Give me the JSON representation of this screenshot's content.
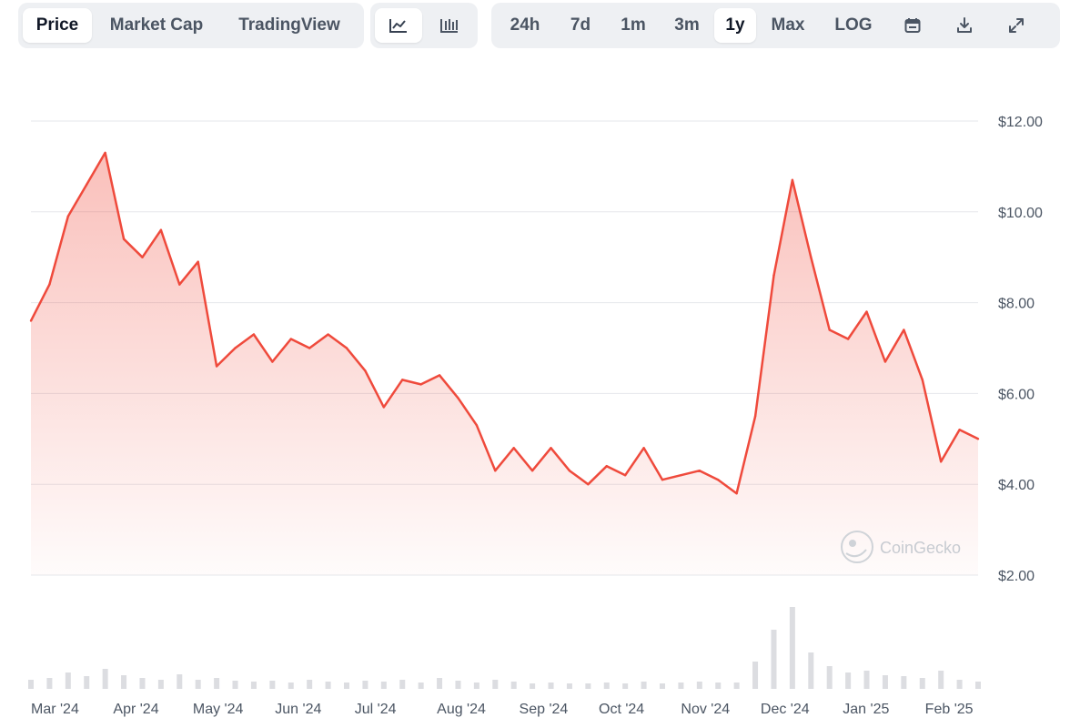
{
  "toolbar": {
    "tabs": [
      "Price",
      "Market Cap",
      "TradingView"
    ],
    "active_tab": "Price",
    "chart_styles": [
      "line-chart-icon",
      "candlestick-icon"
    ],
    "active_style": "line-chart-icon",
    "ranges": [
      "24h",
      "7d",
      "1m",
      "3m",
      "1y",
      "Max",
      "LOG"
    ],
    "active_range": "1y",
    "tools": [
      "calendar-icon",
      "download-icon",
      "expand-icon"
    ]
  },
  "watermark": "CoinGecko",
  "colors": {
    "line": "#ef4a3c",
    "grid": "#e5e7eb",
    "axis_text": "#4b5563",
    "volume": "#dcdde1"
  },
  "chart_data": {
    "type": "area",
    "x": [
      "2024-03-01",
      "2024-03-08",
      "2024-03-15",
      "2024-03-22",
      "2024-03-29",
      "2024-04-05",
      "2024-04-12",
      "2024-04-19",
      "2024-04-26",
      "2024-05-03",
      "2024-05-10",
      "2024-05-17",
      "2024-05-24",
      "2024-05-31",
      "2024-06-07",
      "2024-06-14",
      "2024-06-21",
      "2024-06-28",
      "2024-07-05",
      "2024-07-12",
      "2024-07-19",
      "2024-07-26",
      "2024-08-02",
      "2024-08-09",
      "2024-08-16",
      "2024-08-23",
      "2024-08-30",
      "2024-09-06",
      "2024-09-13",
      "2024-09-20",
      "2024-09-27",
      "2024-10-04",
      "2024-10-11",
      "2024-10-18",
      "2024-10-25",
      "2024-11-01",
      "2024-11-08",
      "2024-11-15",
      "2024-11-22",
      "2024-11-29",
      "2024-12-06",
      "2024-12-13",
      "2024-12-20",
      "2024-12-27",
      "2025-01-03",
      "2025-01-10",
      "2025-01-17",
      "2025-01-24",
      "2025-01-31",
      "2025-02-07",
      "2025-02-14",
      "2025-02-21"
    ],
    "series": [
      {
        "values": [
          7.6,
          8.4,
          9.9,
          10.6,
          11.3,
          9.4,
          9.0,
          9.6,
          8.4,
          8.9,
          6.6,
          7.0,
          7.3,
          6.7,
          7.2,
          7.0,
          7.3,
          7.0,
          6.5,
          5.7,
          6.3,
          6.2,
          6.4,
          5.9,
          5.3,
          4.3,
          4.8,
          4.3,
          4.8,
          4.3,
          4.0,
          4.4,
          4.2,
          4.8,
          4.1,
          4.2,
          4.3,
          4.1,
          3.8,
          5.5,
          8.6,
          10.7,
          9.0,
          7.4,
          7.2,
          7.8,
          6.7,
          7.4,
          6.3,
          4.5,
          5.2,
          5.0
        ]
      }
    ],
    "ylim": [
      2,
      12
    ],
    "yticks": [
      "$2.00",
      "$4.00",
      "$6.00",
      "$8.00",
      "$10.00",
      "$12.00"
    ],
    "ytick_values": [
      2,
      4,
      6,
      8,
      10,
      12
    ],
    "xticks": [
      "Mar '24",
      "Apr '24",
      "May '24",
      "Jun '24",
      "Jul '24",
      "Aug '24",
      "Sep '24",
      "Oct '24",
      "Nov '24",
      "Dec '24",
      "Jan '25",
      "Feb '25"
    ],
    "xtick_dates": [
      "2024-03-01",
      "2024-04-01",
      "2024-05-01",
      "2024-06-01",
      "2024-07-01",
      "2024-08-01",
      "2024-09-01",
      "2024-10-01",
      "2024-11-01",
      "2024-12-01",
      "2025-01-01",
      "2025-02-01"
    ],
    "grid": true,
    "legend": "none",
    "volume": [
      0.1,
      0.12,
      0.18,
      0.14,
      0.22,
      0.15,
      0.12,
      0.1,
      0.16,
      0.1,
      0.12,
      0.09,
      0.08,
      0.09,
      0.07,
      0.1,
      0.08,
      0.07,
      0.09,
      0.08,
      0.1,
      0.07,
      0.12,
      0.09,
      0.07,
      0.1,
      0.08,
      0.06,
      0.07,
      0.06,
      0.06,
      0.07,
      0.06,
      0.08,
      0.06,
      0.07,
      0.08,
      0.07,
      0.07,
      0.3,
      0.65,
      0.9,
      0.4,
      0.25,
      0.18,
      0.2,
      0.15,
      0.14,
      0.12,
      0.2,
      0.1,
      0.08
    ]
  }
}
